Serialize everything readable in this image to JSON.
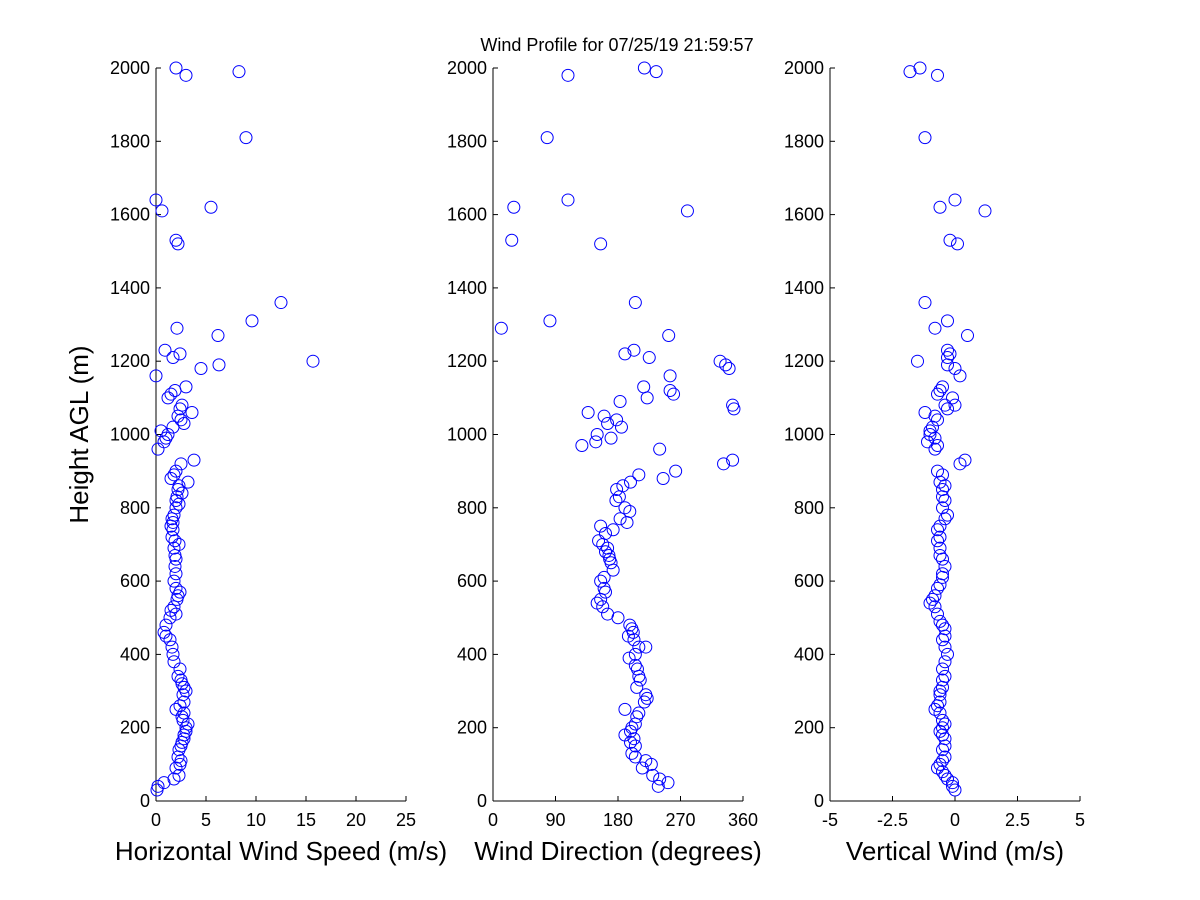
{
  "figure": {
    "title": "Wind Profile for  07/25/19 21:59:57",
    "marker_color": "#0000ff"
  },
  "chart_data": [
    {
      "type": "scatter",
      "xlabel": "Horizontal Wind Speed (m/s)",
      "ylabel": "Height AGL (m)",
      "xlim": [
        0,
        25
      ],
      "ylim": [
        0,
        2000
      ],
      "xticks": [
        0,
        5,
        10,
        15,
        20,
        25
      ],
      "xtick_labels": [
        "0",
        "5",
        "10",
        "15",
        "20",
        "25"
      ],
      "yticks": [
        0,
        200,
        400,
        600,
        800,
        1000,
        1200,
        1400,
        1600,
        1800,
        2000
      ],
      "ytick_labels": [
        "0",
        "200",
        "400",
        "600",
        "800",
        "1000",
        "1200",
        "1400",
        "1600",
        "1800",
        "2000"
      ],
      "grid": false,
      "points": [
        [
          2.0,
          2000
        ],
        [
          3.0,
          1980
        ],
        [
          8.3,
          1990
        ],
        [
          9.0,
          1810
        ],
        [
          0.0,
          1640
        ],
        [
          0.6,
          1610
        ],
        [
          5.5,
          1620
        ],
        [
          2.0,
          1530
        ],
        [
          2.2,
          1520
        ],
        [
          12.5,
          1360
        ],
        [
          9.6,
          1310
        ],
        [
          2.1,
          1290
        ],
        [
          6.2,
          1270
        ],
        [
          0.9,
          1230
        ],
        [
          2.4,
          1220
        ],
        [
          1.7,
          1210
        ],
        [
          15.7,
          1200
        ],
        [
          6.3,
          1190
        ],
        [
          4.5,
          1180
        ],
        [
          0.0,
          1160
        ],
        [
          3.0,
          1130
        ],
        [
          1.9,
          1120
        ],
        [
          1.5,
          1110
        ],
        [
          1.2,
          1100
        ],
        [
          2.6,
          1080
        ],
        [
          2.4,
          1070
        ],
        [
          3.6,
          1060
        ],
        [
          2.2,
          1050
        ],
        [
          2.5,
          1040
        ],
        [
          2.8,
          1030
        ],
        [
          1.7,
          1020
        ],
        [
          0.5,
          1010
        ],
        [
          1.2,
          1000
        ],
        [
          1.0,
          990
        ],
        [
          0.8,
          980
        ],
        [
          0.2,
          960
        ],
        [
          3.8,
          930
        ],
        [
          2.5,
          920
        ],
        [
          2.0,
          900
        ],
        [
          1.8,
          890
        ],
        [
          1.5,
          880
        ],
        [
          3.2,
          870
        ],
        [
          2.3,
          860
        ],
        [
          2.2,
          850
        ],
        [
          2.6,
          840
        ],
        [
          2.1,
          830
        ],
        [
          2.0,
          820
        ],
        [
          2.3,
          810
        ],
        [
          2.0,
          800
        ],
        [
          1.8,
          780
        ],
        [
          1.6,
          770
        ],
        [
          1.7,
          760
        ],
        [
          1.5,
          750
        ],
        [
          1.7,
          740
        ],
        [
          1.6,
          720
        ],
        [
          1.9,
          710
        ],
        [
          2.3,
          700
        ],
        [
          1.8,
          690
        ],
        [
          1.9,
          670
        ],
        [
          2.0,
          660
        ],
        [
          1.9,
          640
        ],
        [
          2.0,
          620
        ],
        [
          1.8,
          600
        ],
        [
          2.0,
          580
        ],
        [
          2.4,
          570
        ],
        [
          2.2,
          560
        ],
        [
          2.1,
          550
        ],
        [
          1.8,
          530
        ],
        [
          1.5,
          520
        ],
        [
          2.0,
          510
        ],
        [
          1.4,
          500
        ],
        [
          1.0,
          480
        ],
        [
          0.8,
          460
        ],
        [
          1.0,
          450
        ],
        [
          1.4,
          440
        ],
        [
          1.6,
          420
        ],
        [
          1.7,
          400
        ],
        [
          1.8,
          380
        ],
        [
          2.4,
          360
        ],
        [
          2.2,
          340
        ],
        [
          2.5,
          330
        ],
        [
          2.6,
          320
        ],
        [
          2.8,
          310
        ],
        [
          3.0,
          300
        ],
        [
          2.7,
          290
        ],
        [
          2.8,
          270
        ],
        [
          2.4,
          260
        ],
        [
          2.0,
          250
        ],
        [
          2.8,
          240
        ],
        [
          2.6,
          230
        ],
        [
          2.7,
          220
        ],
        [
          3.2,
          210
        ],
        [
          3.0,
          200
        ],
        [
          3.0,
          190
        ],
        [
          2.8,
          180
        ],
        [
          2.8,
          170
        ],
        [
          2.6,
          160
        ],
        [
          2.5,
          150
        ],
        [
          2.3,
          140
        ],
        [
          2.2,
          120
        ],
        [
          2.5,
          110
        ],
        [
          2.4,
          100
        ],
        [
          2.0,
          90
        ],
        [
          2.3,
          70
        ],
        [
          1.8,
          60
        ],
        [
          0.8,
          50
        ],
        [
          0.2,
          40
        ],
        [
          0.1,
          30
        ]
      ]
    },
    {
      "type": "scatter",
      "xlabel": "Wind Direction (degrees)",
      "ylabel": "",
      "xlim": [
        0,
        360
      ],
      "ylim": [
        0,
        2000
      ],
      "xticks": [
        0,
        90,
        180,
        270,
        360
      ],
      "xtick_labels": [
        "0",
        "90",
        "180",
        "270",
        "360"
      ],
      "yticks": [
        0,
        200,
        400,
        600,
        800,
        1000,
        1200,
        1400,
        1600,
        1800,
        2000
      ],
      "ytick_labels": [
        "0",
        "200",
        "400",
        "600",
        "800",
        "1000",
        "1200",
        "1400",
        "1600",
        "1800",
        "2000"
      ],
      "grid": false,
      "points": [
        [
          108,
          1980
        ],
        [
          218,
          2000
        ],
        [
          235,
          1990
        ],
        [
          78,
          1810
        ],
        [
          108,
          1640
        ],
        [
          30,
          1620
        ],
        [
          280,
          1610
        ],
        [
          27,
          1530
        ],
        [
          155,
          1520
        ],
        [
          205,
          1360
        ],
        [
          82,
          1310
        ],
        [
          12,
          1290
        ],
        [
          253,
          1270
        ],
        [
          190,
          1220
        ],
        [
          203,
          1230
        ],
        [
          225,
          1210
        ],
        [
          327,
          1200
        ],
        [
          335,
          1190
        ],
        [
          340,
          1180
        ],
        [
          255,
          1160
        ],
        [
          217,
          1130
        ],
        [
          255,
          1120
        ],
        [
          260,
          1110
        ],
        [
          222,
          1100
        ],
        [
          183,
          1090
        ],
        [
          345,
          1080
        ],
        [
          347,
          1070
        ],
        [
          137,
          1060
        ],
        [
          160,
          1050
        ],
        [
          178,
          1040
        ],
        [
          165,
          1030
        ],
        [
          185,
          1020
        ],
        [
          150,
          1000
        ],
        [
          170,
          990
        ],
        [
          148,
          980
        ],
        [
          128,
          970
        ],
        [
          240,
          960
        ],
        [
          345,
          930
        ],
        [
          332,
          920
        ],
        [
          263,
          900
        ],
        [
          210,
          890
        ],
        [
          245,
          880
        ],
        [
          198,
          870
        ],
        [
          178,
          850
        ],
        [
          187,
          860
        ],
        [
          182,
          830
        ],
        [
          177,
          820
        ],
        [
          190,
          800
        ],
        [
          197,
          790
        ],
        [
          183,
          770
        ],
        [
          193,
          760
        ],
        [
          173,
          740
        ],
        [
          162,
          730
        ],
        [
          155,
          750
        ],
        [
          152,
          710
        ],
        [
          158,
          700
        ],
        [
          165,
          690
        ],
        [
          167,
          670
        ],
        [
          162,
          680
        ],
        [
          168,
          660
        ],
        [
          170,
          650
        ],
        [
          173,
          630
        ],
        [
          160,
          610
        ],
        [
          155,
          600
        ],
        [
          160,
          580
        ],
        [
          162,
          570
        ],
        [
          155,
          550
        ],
        [
          150,
          540
        ],
        [
          158,
          530
        ],
        [
          165,
          510
        ],
        [
          180,
          500
        ],
        [
          197,
          480
        ],
        [
          200,
          470
        ],
        [
          202,
          460
        ],
        [
          195,
          450
        ],
        [
          203,
          440
        ],
        [
          210,
          420
        ],
        [
          220,
          420
        ],
        [
          205,
          400
        ],
        [
          196,
          390
        ],
        [
          205,
          370
        ],
        [
          208,
          360
        ],
        [
          210,
          340
        ],
        [
          212,
          330
        ],
        [
          207,
          310
        ],
        [
          220,
          290
        ],
        [
          222,
          280
        ],
        [
          218,
          270
        ],
        [
          190,
          250
        ],
        [
          210,
          240
        ],
        [
          207,
          230
        ],
        [
          205,
          210
        ],
        [
          200,
          200
        ],
        [
          198,
          190
        ],
        [
          190,
          180
        ],
        [
          203,
          170
        ],
        [
          198,
          160
        ],
        [
          205,
          150
        ],
        [
          200,
          130
        ],
        [
          205,
          120
        ],
        [
          220,
          110
        ],
        [
          228,
          100
        ],
        [
          215,
          90
        ],
        [
          230,
          70
        ],
        [
          240,
          60
        ],
        [
          252,
          50
        ],
        [
          238,
          40
        ]
      ]
    },
    {
      "type": "scatter",
      "xlabel": "Vertical Wind (m/s)",
      "ylabel": "",
      "xlim": [
        -5,
        5
      ],
      "ylim": [
        0,
        2000
      ],
      "xticks": [
        -5,
        -2.5,
        0,
        2.5,
        5
      ],
      "xtick_labels": [
        "-5",
        "-2.5",
        "0",
        "2.5",
        "5"
      ],
      "yticks": [
        0,
        200,
        400,
        600,
        800,
        1000,
        1200,
        1400,
        1600,
        1800,
        2000
      ],
      "ytick_labels": [
        "0",
        "200",
        "400",
        "600",
        "800",
        "1000",
        "1200",
        "1400",
        "1600",
        "1800",
        "2000"
      ],
      "grid": false,
      "points": [
        [
          -1.8,
          1990
        ],
        [
          -1.4,
          2000
        ],
        [
          -0.7,
          1980
        ],
        [
          -1.2,
          1810
        ],
        [
          0.0,
          1640
        ],
        [
          -0.6,
          1620
        ],
        [
          1.2,
          1610
        ],
        [
          -0.2,
          1530
        ],
        [
          0.1,
          1520
        ],
        [
          -1.2,
          1360
        ],
        [
          -0.3,
          1310
        ],
        [
          -0.8,
          1290
        ],
        [
          0.5,
          1270
        ],
        [
          -0.3,
          1230
        ],
        [
          -0.2,
          1220
        ],
        [
          -0.3,
          1210
        ],
        [
          -1.5,
          1200
        ],
        [
          -0.3,
          1190
        ],
        [
          0.0,
          1180
        ],
        [
          0.2,
          1160
        ],
        [
          -0.5,
          1130
        ],
        [
          -0.6,
          1120
        ],
        [
          -0.7,
          1110
        ],
        [
          -0.1,
          1100
        ],
        [
          -0.4,
          1080
        ],
        [
          0.0,
          1080
        ],
        [
          -0.3,
          1070
        ],
        [
          -1.2,
          1060
        ],
        [
          -0.8,
          1050
        ],
        [
          -0.7,
          1040
        ],
        [
          -0.9,
          1020
        ],
        [
          -1.0,
          1010
        ],
        [
          -1.0,
          1000
        ],
        [
          -0.8,
          990
        ],
        [
          -1.1,
          980
        ],
        [
          -0.7,
          970
        ],
        [
          -0.8,
          960
        ],
        [
          0.4,
          930
        ],
        [
          0.2,
          920
        ],
        [
          -0.7,
          900
        ],
        [
          -0.5,
          890
        ],
        [
          -0.6,
          870
        ],
        [
          -0.4,
          860
        ],
        [
          -0.5,
          850
        ],
        [
          -0.5,
          830
        ],
        [
          -0.4,
          820
        ],
        [
          -0.5,
          800
        ],
        [
          -0.3,
          780
        ],
        [
          -0.4,
          770
        ],
        [
          -0.6,
          750
        ],
        [
          -0.7,
          740
        ],
        [
          -0.6,
          720
        ],
        [
          -0.7,
          710
        ],
        [
          -0.6,
          690
        ],
        [
          -0.6,
          670
        ],
        [
          -0.5,
          660
        ],
        [
          -0.4,
          640
        ],
        [
          -0.5,
          620
        ],
        [
          -0.5,
          610
        ],
        [
          -0.6,
          590
        ],
        [
          -0.7,
          580
        ],
        [
          -0.8,
          560
        ],
        [
          -0.9,
          550
        ],
        [
          -1.0,
          540
        ],
        [
          -0.8,
          530
        ],
        [
          -0.7,
          510
        ],
        [
          -0.6,
          490
        ],
        [
          -0.5,
          480
        ],
        [
          -0.4,
          470
        ],
        [
          -0.4,
          450
        ],
        [
          -0.5,
          440
        ],
        [
          -0.4,
          420
        ],
        [
          -0.3,
          400
        ],
        [
          -0.4,
          380
        ],
        [
          -0.5,
          360
        ],
        [
          -0.4,
          340
        ],
        [
          -0.5,
          330
        ],
        [
          -0.5,
          310
        ],
        [
          -0.6,
          300
        ],
        [
          -0.6,
          290
        ],
        [
          -0.6,
          270
        ],
        [
          -0.7,
          260
        ],
        [
          -0.8,
          250
        ],
        [
          -0.6,
          240
        ],
        [
          -0.5,
          220
        ],
        [
          -0.4,
          210
        ],
        [
          -0.5,
          200
        ],
        [
          -0.6,
          190
        ],
        [
          -0.5,
          180
        ],
        [
          -0.4,
          170
        ],
        [
          -0.4,
          150
        ],
        [
          -0.5,
          140
        ],
        [
          -0.4,
          120
        ],
        [
          -0.5,
          110
        ],
        [
          -0.6,
          100
        ],
        [
          -0.7,
          90
        ],
        [
          -0.5,
          80
        ],
        [
          -0.4,
          70
        ],
        [
          -0.3,
          60
        ],
        [
          -0.1,
          50
        ],
        [
          -0.1,
          40
        ],
        [
          0.0,
          30
        ]
      ]
    }
  ]
}
